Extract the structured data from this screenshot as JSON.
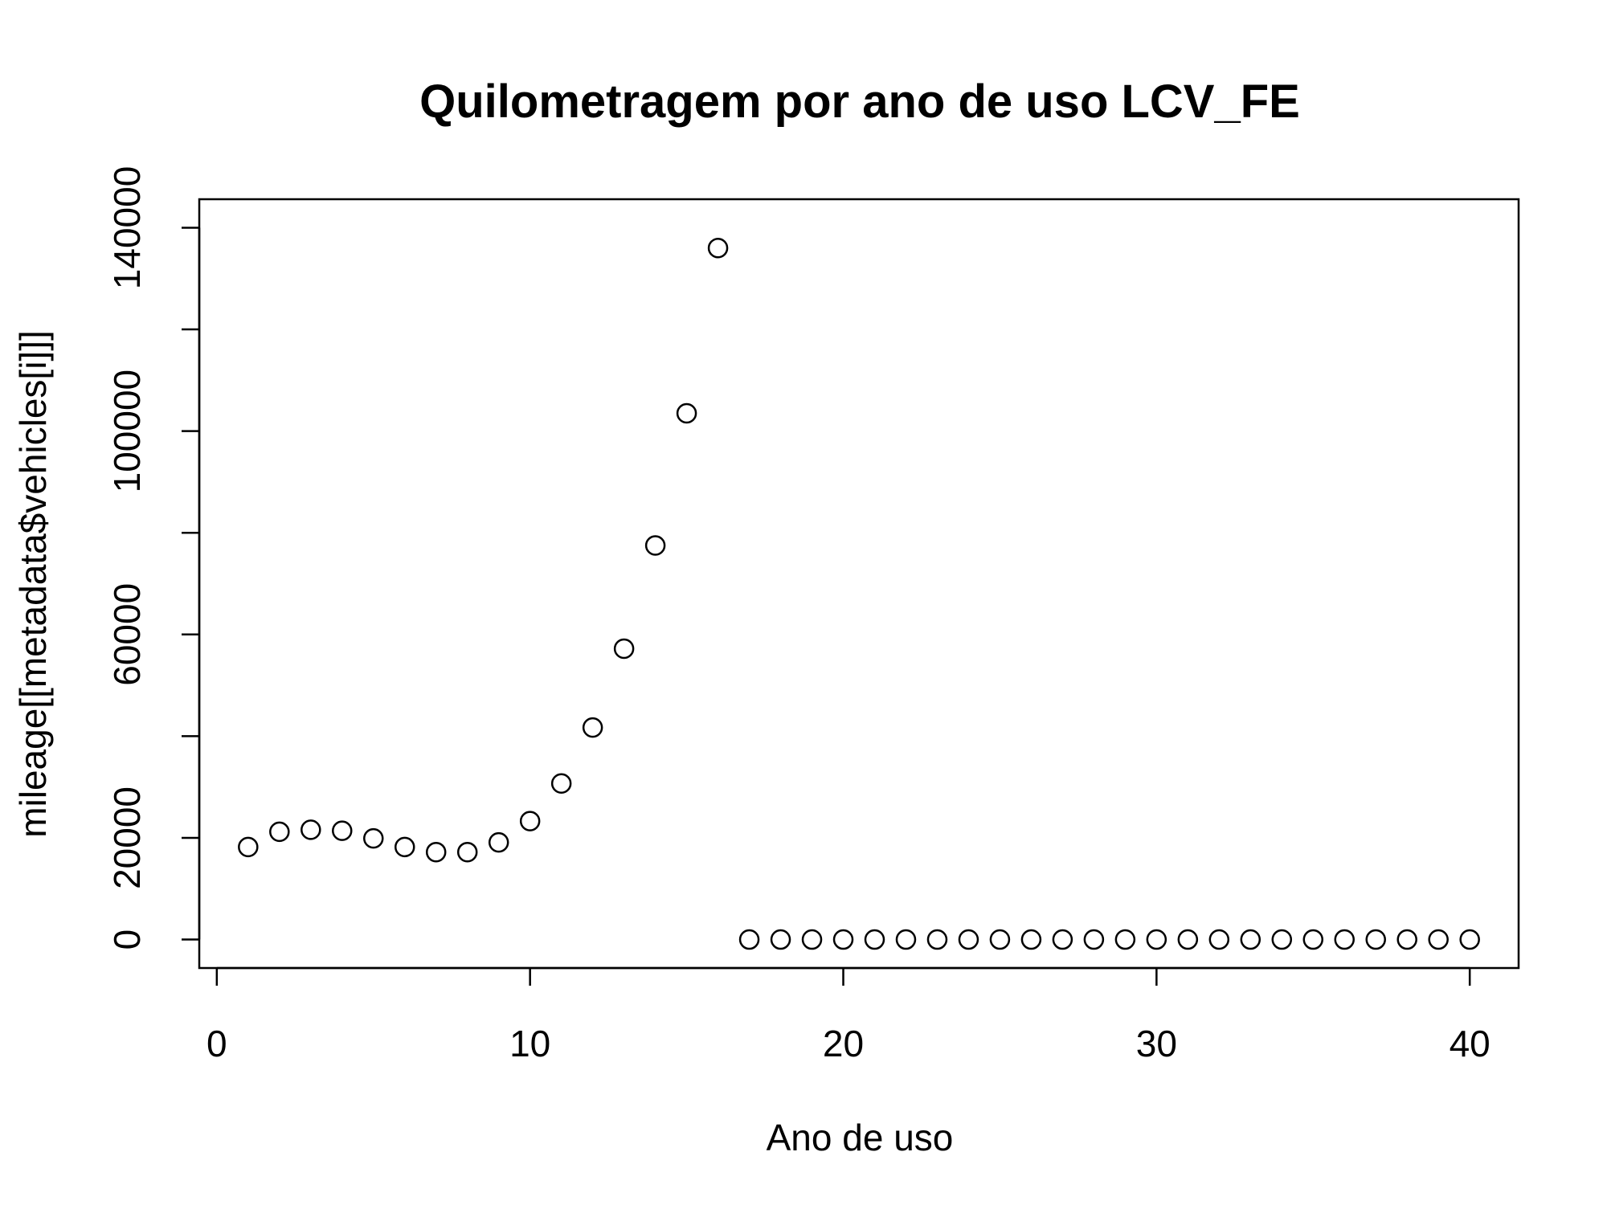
{
  "chart_data": {
    "type": "scatter",
    "title": "Quilometragem por ano de uso LCV_FE",
    "xlabel": "Ano de uso",
    "ylabel": "mileage[[metadata$vehicles[i]]]",
    "xlim": [
      -0.56,
      41.56
    ],
    "ylim": [
      -5600,
      145600
    ],
    "x_ticks": [
      0,
      10,
      20,
      30,
      40
    ],
    "x_tick_labels": [
      "0",
      "10",
      "20",
      "30",
      "40"
    ],
    "y_ticks": [
      0,
      20000,
      40000,
      60000,
      80000,
      100000,
      120000,
      140000
    ],
    "y_tick_labels": [
      "0",
      "20000",
      "",
      "60000",
      "",
      "100000",
      "",
      "140000"
    ],
    "grid": false,
    "marker": "open-circle",
    "x": [
      1,
      2,
      3,
      4,
      5,
      6,
      7,
      8,
      9,
      10,
      11,
      12,
      13,
      14,
      15,
      16,
      17,
      18,
      19,
      20,
      21,
      22,
      23,
      24,
      25,
      26,
      27,
      28,
      29,
      30,
      31,
      32,
      33,
      34,
      35,
      36,
      37,
      38,
      39,
      40
    ],
    "y": [
      18200,
      21200,
      21600,
      21400,
      19900,
      18200,
      17200,
      17200,
      19100,
      23300,
      30700,
      41700,
      57200,
      77500,
      103500,
      136000,
      0,
      0,
      0,
      0,
      0,
      0,
      0,
      0,
      0,
      0,
      0,
      0,
      0,
      0,
      0,
      0,
      0,
      0,
      0,
      0,
      0,
      0,
      0,
      0
    ]
  }
}
